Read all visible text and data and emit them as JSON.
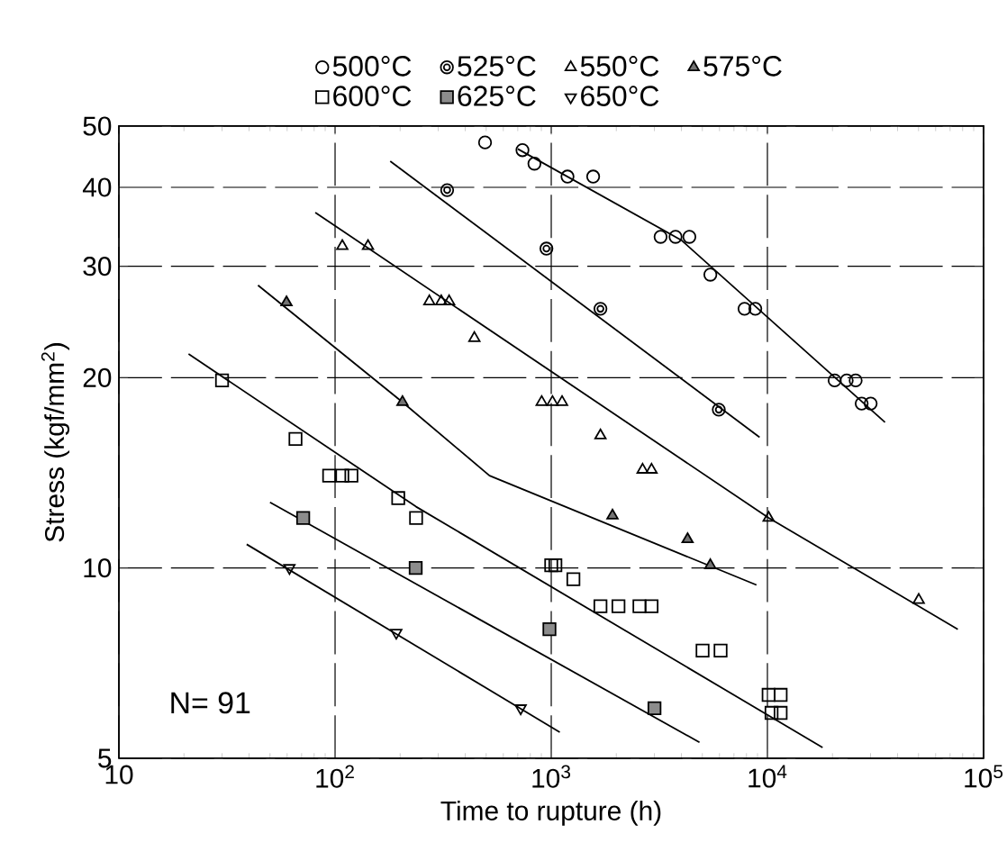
{
  "chart_data": {
    "type": "scatter",
    "xlabel": "Time to rupture (h)",
    "ylabel": "Stress (kgf/mm$^{2}$)",
    "log": "xy",
    "grid": true,
    "legend": "top",
    "xlim": [
      10,
      100000
    ],
    "ylim": [
      5,
      50
    ],
    "xticks": [
      10,
      {
        "value": 100,
        "label": "10$^{2}$"
      },
      {
        "value": 1000,
        "label": "10$^{3}$"
      },
      {
        "value": 10000,
        "label": "10$^{4}$"
      },
      {
        "value": 100000,
        "label": "10$^{5}$"
      }
    ],
    "yticks": [
      5,
      10,
      20,
      30,
      40,
      50
    ],
    "annotations": [
      "N= 91"
    ],
    "series": [
      {
        "name": "500°C",
        "marker": "circle",
        "color": "#000000",
        "x": [
          494,
          736,
          836,
          1189,
          1563,
          3205,
          3758,
          4355,
          5445,
          7838,
          8790,
          20460,
          23270,
          25600,
          27290,
          30040
        ],
        "values": [
          47.1,
          45.8,
          43.6,
          41.6,
          41.6,
          33.4,
          33.4,
          33.4,
          29.1,
          25.7,
          25.7,
          19.8,
          19.8,
          19.8,
          18.2,
          18.2
        ]
      },
      {
        "name": "525°C",
        "marker": "circle-dot",
        "color": "#000000",
        "x": [
          330,
          950,
          1689,
          5957
        ],
        "values": [
          39.6,
          32.0,
          25.7,
          17.8
        ]
      },
      {
        "name": "550°C",
        "marker": "triangle",
        "color": "#000000",
        "x": [
          108,
          142,
          273,
          310,
          337,
          441,
          903,
          1013,
          1122,
          1689,
          2646,
          2911,
          10130,
          50120
        ],
        "values": [
          32.3,
          32.3,
          26.4,
          26.4,
          26.4,
          23.1,
          18.3,
          18.3,
          18.3,
          16.2,
          14.3,
          14.3,
          12.0,
          8.9
        ]
      },
      {
        "name": "575°C",
        "marker": "triangle-filled",
        "color": "#000000",
        "x": [
          59.6,
          205,
          1920,
          4273,
          5445
        ],
        "values": [
          26.3,
          18.3,
          12.1,
          11.1,
          10.1
        ]
      },
      {
        "name": "600°C",
        "marker": "square",
        "color": "#000000",
        "x": [
          30,
          65.6,
          93.9,
          108,
          119,
          196,
          237,
          1000,
          1045,
          1266,
          1689,
          2046,
          2559,
          2911,
          5012,
          6072,
          10130,
          11510,
          10450,
          11510
        ],
        "values": [
          19.8,
          16.0,
          14.0,
          14.0,
          14.0,
          12.9,
          12.0,
          10.1,
          10.1,
          9.6,
          8.7,
          8.7,
          8.7,
          8.7,
          7.4,
          7.4,
          6.3,
          6.3,
          5.9,
          5.9
        ]
      },
      {
        "name": "625°C",
        "marker": "square-dot",
        "color": "#000000",
        "x": [
          71.2,
          236,
          981,
          3003
        ],
        "values": [
          12.0,
          10.0,
          8.0,
          6.0
        ]
      },
      {
        "name": "650°C",
        "marker": "triangle-down",
        "color": "#000000",
        "x": [
          61.5,
          192,
          722
        ],
        "values": [
          10.0,
          7.9,
          6.0
        ]
      },
      {
        "type": "line",
        "marker": "none",
        "line_style": "solid",
        "color": "#000000",
        "x": [
          700,
          4000,
          35000
        ],
        "values": [
          46,
          33,
          17
        ]
      },
      {
        "type": "line",
        "marker": "none",
        "line_style": "solid",
        "color": "#000000",
        "x": [
          180,
          9200
        ],
        "values": [
          44,
          16.1
        ]
      },
      {
        "type": "line",
        "marker": "none",
        "line_style": "solid",
        "color": "#000000",
        "x": [
          81,
          10130,
          76000
        ],
        "values": [
          36.5,
          12.0,
          8.0
        ]
      },
      {
        "type": "line",
        "marker": "none",
        "line_style": "solid",
        "color": "#000000",
        "x": [
          44,
          205,
          518,
          8900
        ],
        "values": [
          28,
          18.3,
          14,
          9.4
        ]
      },
      {
        "type": "line",
        "marker": "none",
        "line_style": "solid",
        "color": "#000000",
        "x": [
          21,
          237,
          18000
        ],
        "values": [
          21.8,
          12.5,
          5.2
        ]
      },
      {
        "type": "line",
        "marker": "none",
        "line_style": "solid",
        "color": "#000000",
        "x": [
          50,
          4850
        ],
        "values": [
          12.7,
          5.3
        ]
      },
      {
        "type": "line",
        "marker": "none",
        "line_style": "solid",
        "color": "#000000",
        "x": [
          39,
          1095
        ],
        "values": [
          10.9,
          5.5
        ]
      }
    ]
  }
}
